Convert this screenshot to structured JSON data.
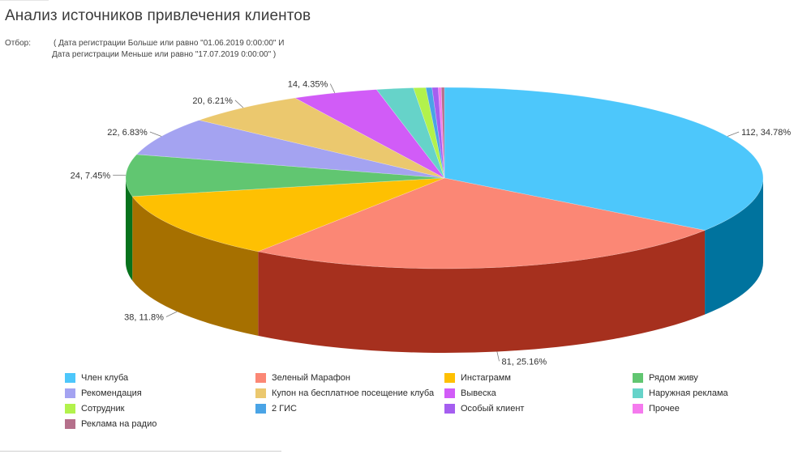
{
  "report": {
    "title": "Анализ источников привлечения клиентов",
    "filter_label": "Отбор:",
    "filter_line_1": "( Дата регистрации Больше или равно \"01.06.2019 0:00:00\" И",
    "filter_line_2": "Дата регистрации Меньше или равно \"17.07.2019 0:00:00\" )"
  },
  "chart_data": {
    "type": "pie",
    "style": "3d",
    "legend_position": "bottom",
    "slices": [
      {
        "name": "Член клуба",
        "value": 112,
        "percent": 34.78,
        "label": "112, 34.78%",
        "color": "#4dc7fb",
        "side_color": "#00739e"
      },
      {
        "name": "Зеленый Марафон",
        "value": 81,
        "percent": 25.16,
        "label": "81, 25.16%",
        "color": "#fb8775",
        "side_color": "#a6301e"
      },
      {
        "name": "Инстаграмм",
        "value": 38,
        "percent": 11.8,
        "label": "38, 11.8%",
        "color": "#fec002",
        "side_color": "#a67000"
      },
      {
        "name": "Рядом живу",
        "value": 24,
        "percent": 7.45,
        "label": "24, 7.45%",
        "color": "#61c671",
        "side_color": "#07721c"
      },
      {
        "name": "Рекомендация",
        "value": 22,
        "percent": 6.83,
        "label": "22, 6.83%",
        "color": "#a4a3f1",
        "side_color": "#4c4b99"
      },
      {
        "name": "Купон на бесплатное посещение клуба",
        "value": 20,
        "percent": 6.21,
        "label": "20, 6.21%",
        "color": "#ebc86e",
        "side_color": "#937016"
      },
      {
        "name": "Вывеска",
        "value": 14,
        "percent": 4.35,
        "label": "14, 4.35%",
        "color": "#d15cf7",
        "side_color": "#7a04a0"
      },
      {
        "name": "Наружная реклама",
        "value": 6,
        "percent": 1.86,
        "label": "",
        "color": "#66d3c9",
        "side_color": "#0f7b71"
      },
      {
        "name": "Сотрудник",
        "value": 2,
        "percent": 0.62,
        "label": "",
        "color": "#b2f24c",
        "side_color": "#5a9a00"
      },
      {
        "name": "2 ГИС",
        "value": 1,
        "percent": 0.31,
        "label": "",
        "color": "#4aa4e6",
        "side_color": "#004c8e"
      },
      {
        "name": "Особый клиент",
        "value": 1,
        "percent": 0.31,
        "label": "",
        "color": "#a55ef0",
        "side_color": "#4d0698"
      },
      {
        "name": "Прочее",
        "value": 0.5,
        "percent": 0.16,
        "label": "",
        "color": "#f57aee",
        "side_color": "#9d2296"
      },
      {
        "name": "Реклама на радио",
        "value": 0.5,
        "percent": 0.16,
        "label": "",
        "color": "#b5708b",
        "side_color": "#5d1833"
      }
    ]
  }
}
